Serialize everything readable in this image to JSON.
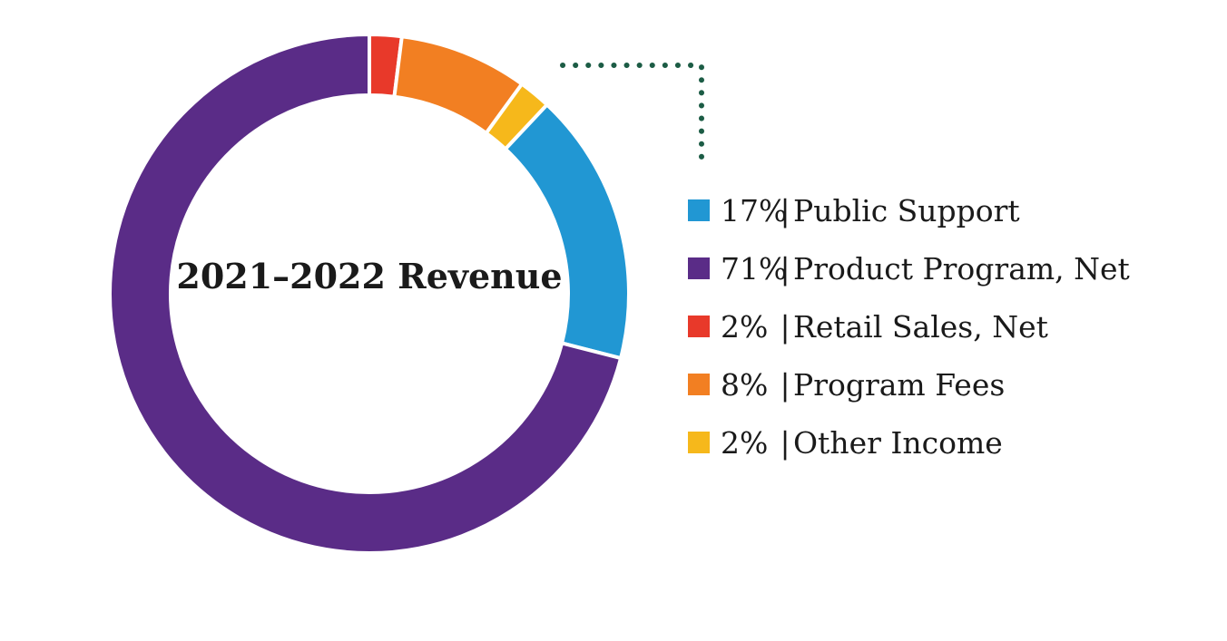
{
  "colors": {
    "connector": "#1c5c45",
    "text": "#1a1a1a",
    "background": "#ffffff"
  },
  "chart_data": {
    "type": "pie",
    "subtype": "donut",
    "title": "2021–2022 Revenue",
    "start_angle_deg": 0,
    "direction": "clockwise",
    "slices": [
      {
        "label": "Retail Sales, Net",
        "value": 2,
        "color": "#e8392a",
        "pct_label": "2%",
        "legend_text": "Retail Sales, Net"
      },
      {
        "label": "Program Fees",
        "value": 8,
        "color": "#f27f22",
        "pct_label": "8%",
        "legend_text": "Program Fees"
      },
      {
        "label": "Other Income",
        "value": 2,
        "color": "#f6b81b",
        "pct_label": "2%",
        "legend_text": "Other Income"
      },
      {
        "label": "Public Support",
        "value": 17,
        "color": "#2197d3",
        "pct_label": "17%",
        "legend_text": "Public Support"
      },
      {
        "label": "Product Program, Net",
        "value": 71,
        "color": "#5a2c87",
        "pct_label": "71%",
        "legend_text": "Product Program, Net"
      }
    ],
    "legend": {
      "placement": "right",
      "separator": "|",
      "order": [
        "Public Support",
        "Product Program, Net",
        "Retail Sales, Net",
        "Program Fees",
        "Other Income"
      ]
    }
  }
}
